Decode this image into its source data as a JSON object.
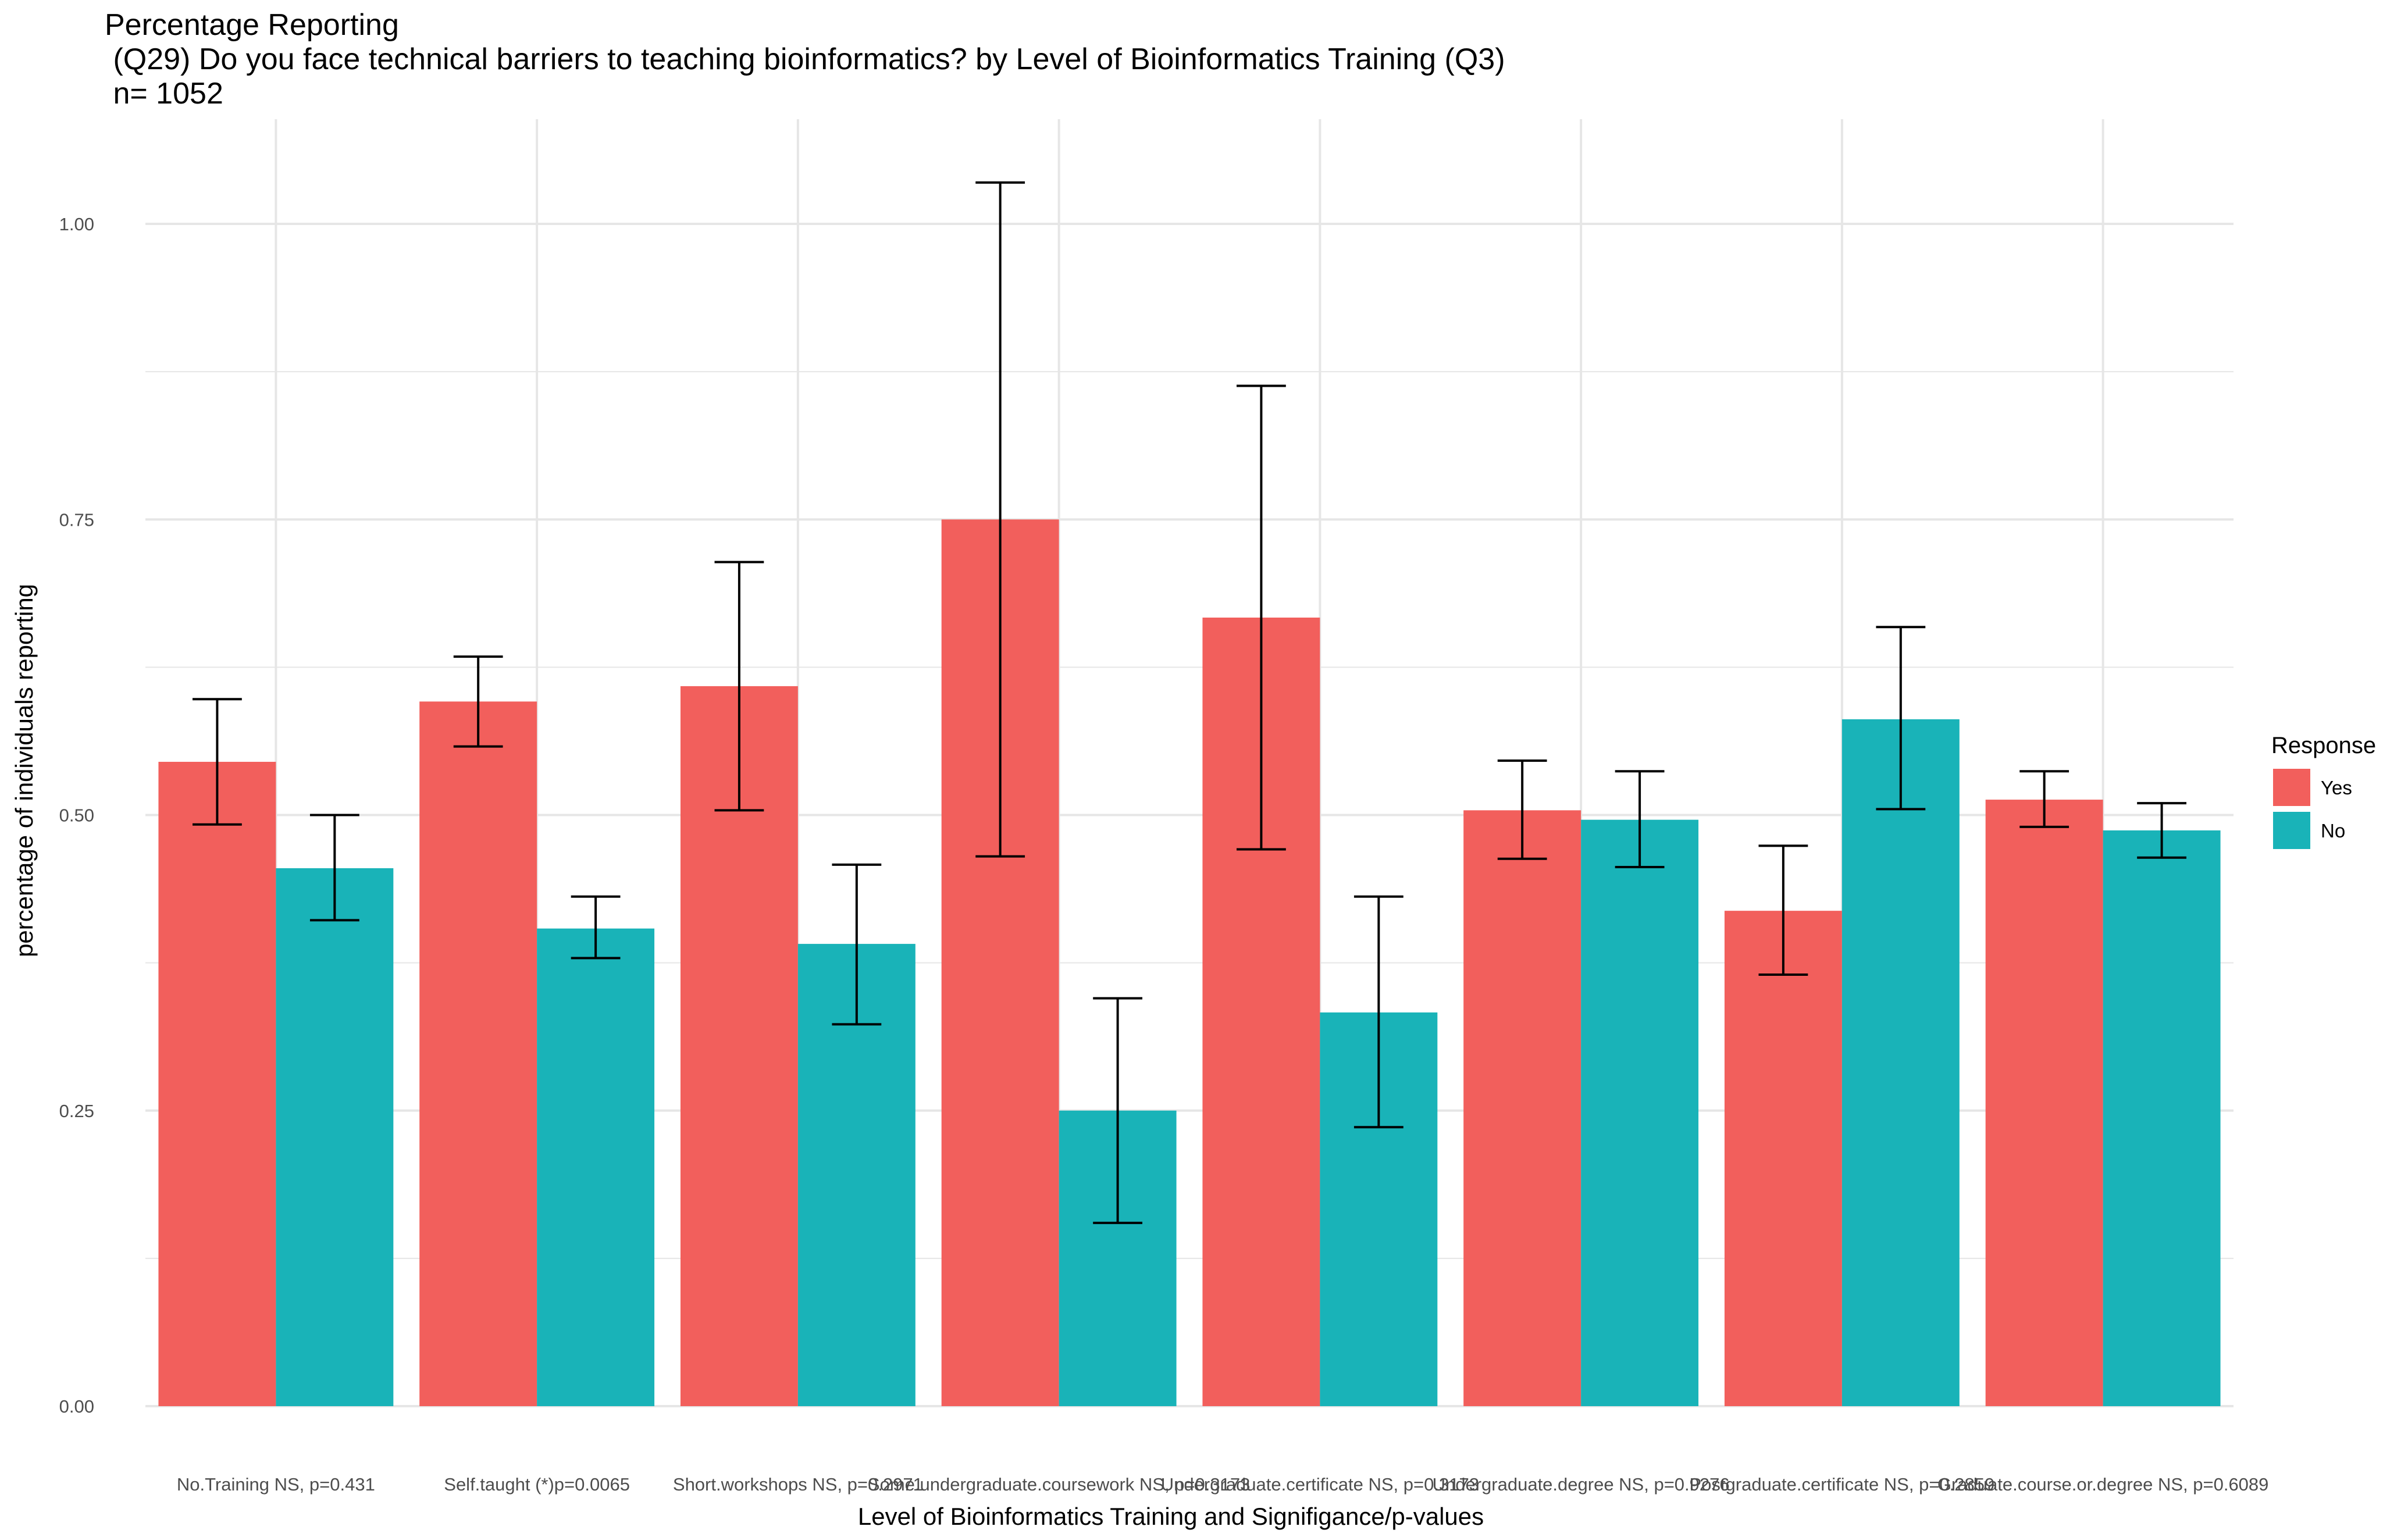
{
  "title": {
    "line1": "Percentage Reporting",
    "line2": " (Q29) Do you face technical barriers to teaching bioinformatics? by Level of Bioinformatics Training (Q3)",
    "line3": " n= 1052"
  },
  "colors": {
    "Yes": "#F25F5C",
    "No": "#19B3B8",
    "grid": "#E6E6E6",
    "errorbar": "#000000"
  },
  "chart_data": {
    "type": "bar",
    "xlabel": "Level of Bioinformatics Training and Signifigance/p-values",
    "ylabel": "percentage of individuals reporting",
    "ylim": [
      0,
      1.08
    ],
    "yticks": [
      "0.00",
      "0.25",
      "0.50",
      "0.75",
      "1.00"
    ],
    "grid": true,
    "legend_position": "right",
    "legend_title": "Response",
    "categories": [
      "No.Training  NS, p=0.431",
      "Self.taught (*)p=0.0065",
      "Short.workshops  NS, p=0.2971",
      "Some.undergraduate.coursework  NS, p=0.3173",
      "Undergraduate.certificate  NS, p=0.3173",
      "Undergraduate.degree  NS, p=0.9276",
      "Postgraduate.certificate  NS, p=0.2859",
      "Graduate.course.or.degree  NS, p=0.6089"
    ],
    "series": [
      {
        "name": "Yes",
        "values": [
          0.545,
          0.596,
          0.609,
          0.75,
          0.667,
          0.504,
          0.419,
          0.513
        ],
        "err_low": [
          0.492,
          0.558,
          0.504,
          0.465,
          0.471,
          0.463,
          0.365,
          0.49
        ],
        "err_high": [
          0.598,
          0.634,
          0.714,
          1.035,
          0.863,
          0.546,
          0.474,
          0.537
        ]
      },
      {
        "name": "No",
        "values": [
          0.455,
          0.404,
          0.391,
          0.25,
          0.333,
          0.496,
          0.581,
          0.487
        ],
        "err_low": [
          0.411,
          0.379,
          0.323,
          0.155,
          0.236,
          0.456,
          0.505,
          0.464
        ],
        "err_high": [
          0.5,
          0.431,
          0.458,
          0.345,
          0.431,
          0.537,
          0.659,
          0.51
        ]
      }
    ]
  }
}
